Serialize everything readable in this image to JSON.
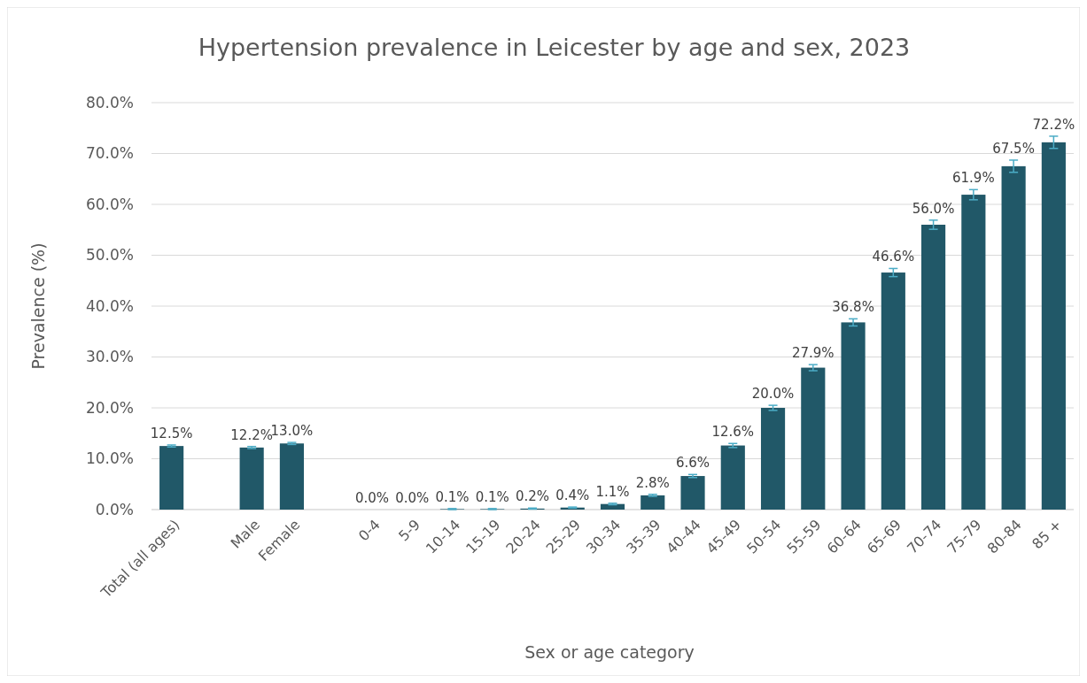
{
  "chart_data": {
    "type": "bar",
    "title": "Hypertension prevalence in Leicester by age and sex, 2023",
    "xlabel": "Sex or age category",
    "ylabel": "Prevalence (%)",
    "categories": [
      "Total (all ages)",
      null,
      "Male",
      "Female",
      null,
      "0-4",
      "5-9",
      "10-14",
      "15-19",
      "20-24",
      "25-29",
      "30-34",
      "35-39",
      "40-44",
      "45-49",
      "50-54",
      "55-59",
      "60-64",
      "65-69",
      "70-74",
      "75-79",
      "80-84",
      "85 +"
    ],
    "values": [
      12.5,
      null,
      12.2,
      13.0,
      null,
      0.0,
      0.0,
      0.1,
      0.1,
      0.2,
      0.4,
      1.1,
      2.8,
      6.6,
      12.6,
      20.0,
      27.9,
      36.8,
      46.6,
      56.0,
      61.9,
      67.5,
      72.2
    ],
    "errors": [
      0.2,
      null,
      0.2,
      0.2,
      null,
      null,
      null,
      0.1,
      0.1,
      0.1,
      0.1,
      0.15,
      0.2,
      0.3,
      0.4,
      0.5,
      0.6,
      0.7,
      0.8,
      0.9,
      1.0,
      1.2,
      1.2
    ],
    "value_labels": [
      "12.5%",
      null,
      "12.2%",
      "13.0%",
      null,
      "0.0%",
      "0.0%",
      "0.1%",
      "0.1%",
      "0.2%",
      "0.4%",
      "1.1%",
      "2.8%",
      "6.6%",
      "12.6%",
      "20.0%",
      "27.9%",
      "36.8%",
      "46.6%",
      "56.0%",
      "61.9%",
      "67.5%",
      "72.2%"
    ],
    "color": "#215868",
    "ylim": [
      0,
      80
    ],
    "yticks": [
      {
        "value": 0,
        "label": "0.0%"
      },
      {
        "value": 10,
        "label": "10.0%"
      },
      {
        "value": 20,
        "label": "20.0%"
      },
      {
        "value": 30,
        "label": "30.0%"
      },
      {
        "value": 40,
        "label": "40.0%"
      },
      {
        "value": 50,
        "label": "50.0%"
      },
      {
        "value": 60,
        "label": "60.0%"
      },
      {
        "value": 70,
        "label": "70.0%"
      },
      {
        "value": 80,
        "label": "80.0%"
      }
    ],
    "grid": "y"
  }
}
